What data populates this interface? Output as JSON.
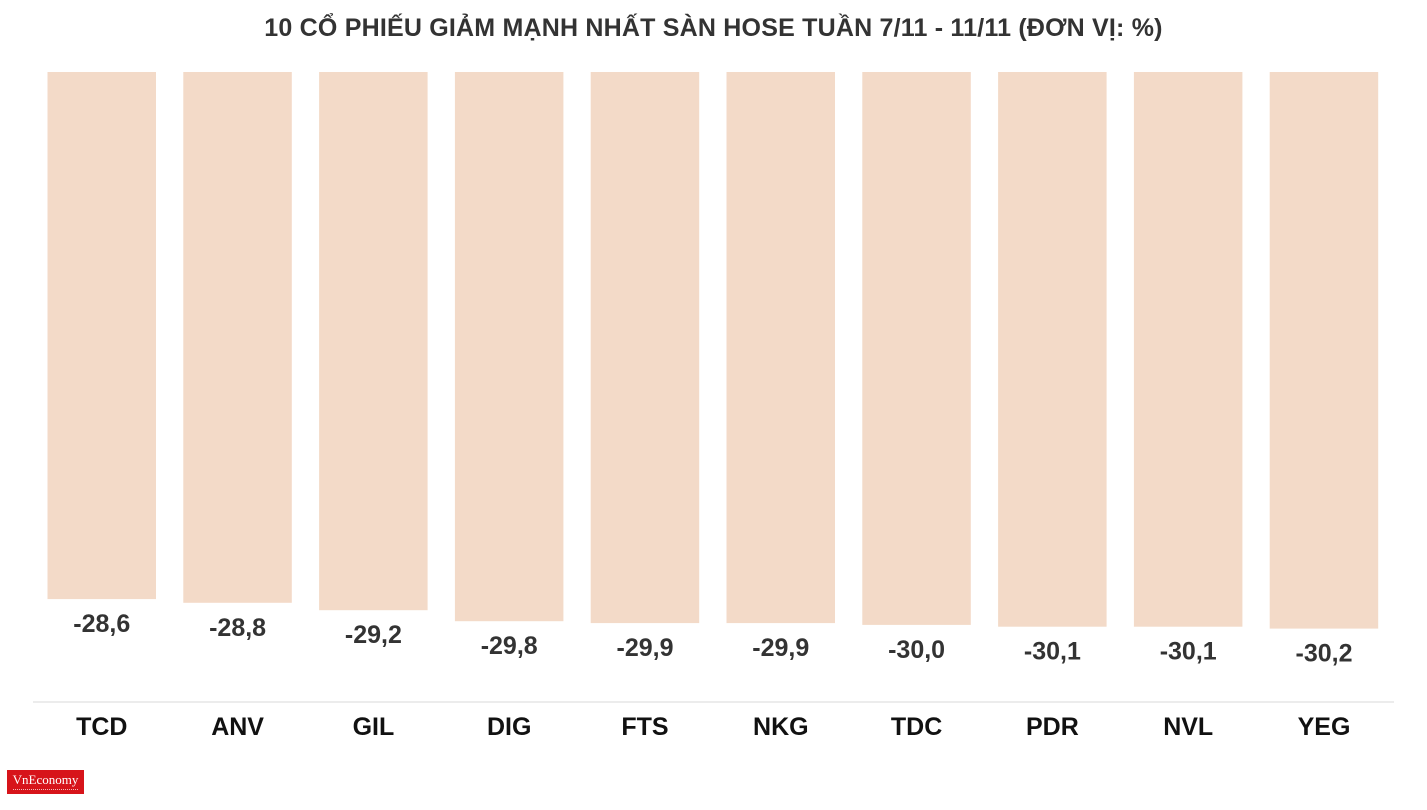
{
  "chart_data": {
    "type": "bar",
    "title": "10 CỔ PHIẾU GIẢM MẠNH NHẤT SÀN HOSE TUẦN 7/11 - 11/11 (ĐƠN VỊ: %)",
    "categories": [
      "TCD",
      "ANV",
      "GIL",
      "DIG",
      "FTS",
      "NKG",
      "TDC",
      "PDR",
      "NVL",
      "YEG"
    ],
    "values": [
      -28.6,
      -28.8,
      -29.2,
      -29.8,
      -29.9,
      -29.9,
      -30.0,
      -30.1,
      -30.1,
      -30.2
    ],
    "value_labels": [
      "-28,6",
      "-28,8",
      "-29,2",
      "-29,8",
      "-29,9",
      "-29,9",
      "-30,0",
      "-30,1",
      "-30,1",
      "-30,2"
    ],
    "ylim": [
      -40,
      0
    ],
    "xlabel": "",
    "ylabel": "",
    "grid": false,
    "bar_color": "#f3dac8"
  },
  "logo": {
    "text": "VnEconomy"
  }
}
